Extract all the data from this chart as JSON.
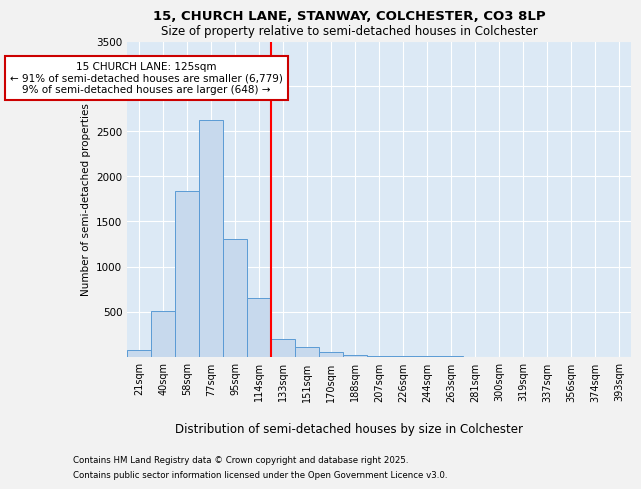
{
  "title1": "15, CHURCH LANE, STANWAY, COLCHESTER, CO3 8LP",
  "title2": "Size of property relative to semi-detached houses in Colchester",
  "xlabel": "Distribution of semi-detached houses by size in Colchester",
  "ylabel": "Number of semi-detached properties",
  "categories": [
    "21sqm",
    "40sqm",
    "58sqm",
    "77sqm",
    "95sqm",
    "114sqm",
    "133sqm",
    "151sqm",
    "170sqm",
    "188sqm",
    "207sqm",
    "226sqm",
    "244sqm",
    "263sqm",
    "281sqm",
    "300sqm",
    "319sqm",
    "337sqm",
    "356sqm",
    "374sqm",
    "393sqm"
  ],
  "values": [
    75,
    510,
    1840,
    2630,
    1310,
    650,
    200,
    105,
    55,
    20,
    10,
    5,
    2,
    1,
    0,
    0,
    0,
    0,
    0,
    0,
    0
  ],
  "bar_color": "#c7d9ed",
  "bar_edge_color": "#5b9bd5",
  "red_line_x": 5.5,
  "annotation_title": "15 CHURCH LANE: 125sqm",
  "annotation_line1": "← 91% of semi-detached houses are smaller (6,779)",
  "annotation_line2": "9% of semi-detached houses are larger (648) →",
  "annotation_box_color": "#ffffff",
  "annotation_box_edge": "#cc0000",
  "ylim": [
    0,
    3500
  ],
  "yticks": [
    0,
    500,
    1000,
    1500,
    2000,
    2500,
    3000,
    3500
  ],
  "background_color": "#dce9f5",
  "grid_color": "#ffffff",
  "fig_background": "#f2f2f2",
  "footer1": "Contains HM Land Registry data © Crown copyright and database right 2025.",
  "footer2": "Contains public sector information licensed under the Open Government Licence v3.0."
}
